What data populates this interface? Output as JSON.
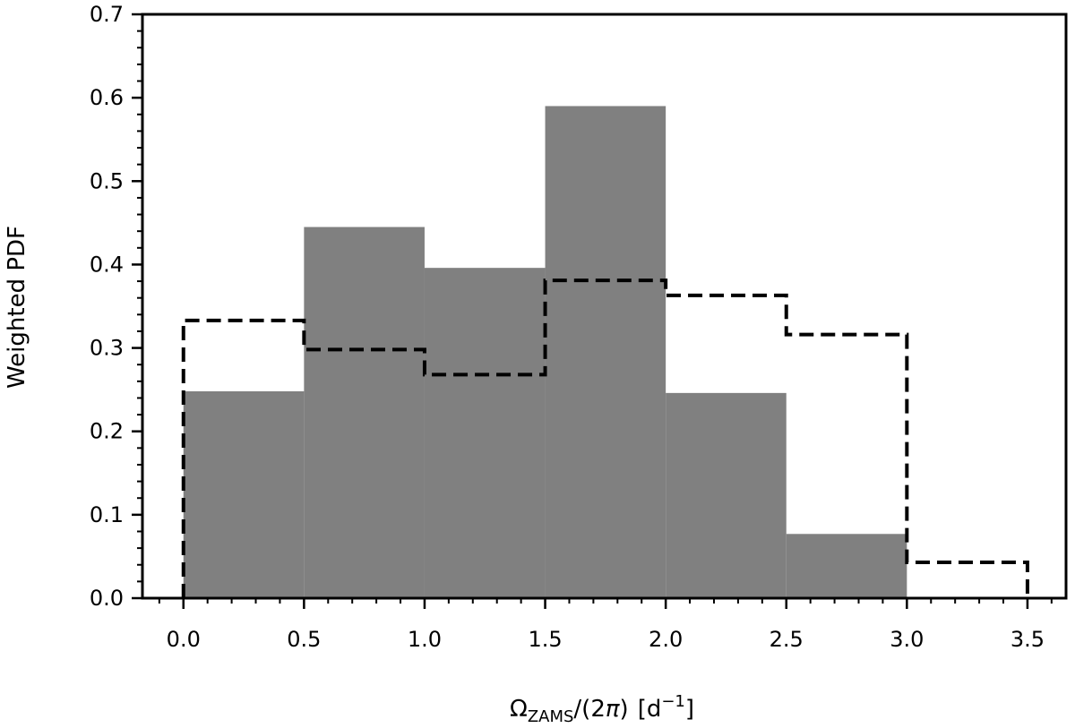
{
  "chart_data": {
    "type": "bar",
    "title": "",
    "xlabel": "Ω_ZAMS/(2π) [d⁻¹]",
    "xlabel_parts": {
      "symbol": "Ω",
      "subscript": "ZAMS",
      "denominator": "/(2",
      "pi": "π",
      "close": ")",
      "unit_open": "[d",
      "unit_exp": "−1",
      "unit_close": "]"
    },
    "ylabel": "Weighted PDF",
    "xlim": [
      -0.17,
      3.66
    ],
    "ylim": [
      0.0,
      0.7
    ],
    "xticks": [
      0.0,
      0.5,
      1.0,
      1.5,
      2.0,
      2.5,
      3.0,
      3.5
    ],
    "xtick_labels": [
      "0.0",
      "0.5",
      "1.0",
      "1.5",
      "2.0",
      "2.5",
      "3.0",
      "3.5"
    ],
    "xminor_step": 0.1,
    "yticks": [
      0.0,
      0.1,
      0.2,
      0.3,
      0.4,
      0.5,
      0.6,
      0.7
    ],
    "ytick_labels": [
      "0.0",
      "0.1",
      "0.2",
      "0.3",
      "0.4",
      "0.5",
      "0.6",
      "0.7"
    ],
    "yminor_step": 0.02,
    "grid": false,
    "bin_edges": [
      0.0,
      0.5,
      1.0,
      1.5,
      2.0,
      2.5,
      3.0,
      3.5
    ],
    "series": [
      {
        "style": "filled",
        "color": "#808080",
        "values": [
          0.248,
          0.445,
          0.396,
          0.59,
          0.246,
          0.077,
          0.0
        ]
      },
      {
        "style": "dashed-step",
        "color": "#000000",
        "values": [
          0.333,
          0.298,
          0.268,
          0.381,
          0.363,
          0.316,
          0.043
        ]
      }
    ]
  }
}
